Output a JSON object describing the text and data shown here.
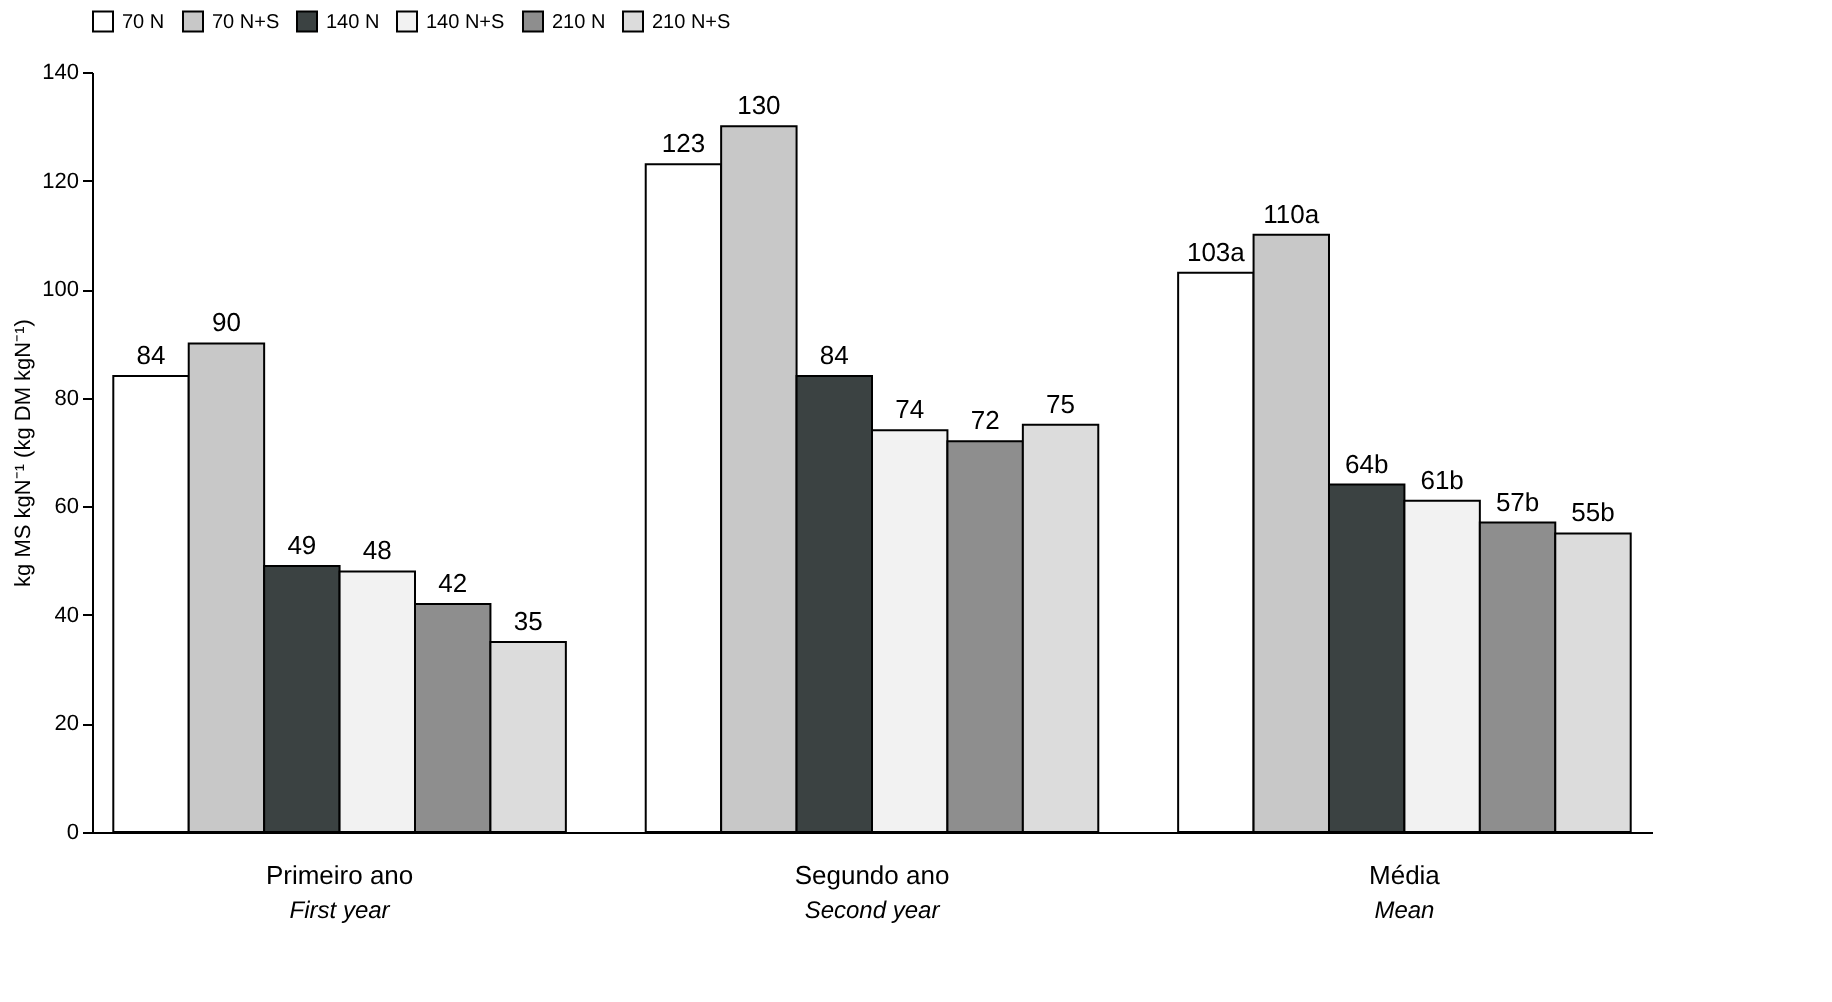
{
  "chart_data": {
    "type": "bar",
    "ylabel": "kg MS kgN⁻¹ (kg DM kgN⁻¹)",
    "categories": [
      "Primeiro ano\nFirst year",
      "Segundo ano\nSecond year",
      "Média\nMean"
    ],
    "series": [
      {
        "name": "70 N",
        "color": "#ffffff",
        "values": [
          84,
          123,
          103
        ],
        "value_labels": [
          "84",
          "123",
          "103a"
        ]
      },
      {
        "name": "70 N+S",
        "color": "#c8c8c8",
        "values": [
          90,
          130,
          110
        ],
        "value_labels": [
          "90",
          "130",
          "110a"
        ]
      },
      {
        "name": "140 N",
        "color": "#3b4242",
        "values": [
          49,
          84,
          64
        ],
        "value_labels": [
          "49",
          "84",
          "64b"
        ]
      },
      {
        "name": "140 N+S",
        "color": "#f2f2f2",
        "values": [
          48,
          74,
          61
        ],
        "value_labels": [
          "48",
          "74",
          "61b"
        ]
      },
      {
        "name": "210 N",
        "color": "#8e8e8e",
        "values": [
          42,
          72,
          57
        ],
        "value_labels": [
          "42",
          "72",
          "57b"
        ]
      },
      {
        "name": "210 N+S",
        "color": "#dcdcdc",
        "values": [
          35,
          75,
          55
        ],
        "value_labels": [
          "35",
          "75",
          "55b"
        ]
      }
    ],
    "ylim": [
      0,
      140
    ],
    "yticks": [
      0,
      20,
      40,
      60,
      80,
      100,
      120,
      140
    ],
    "grid": false,
    "legend": "top"
  }
}
